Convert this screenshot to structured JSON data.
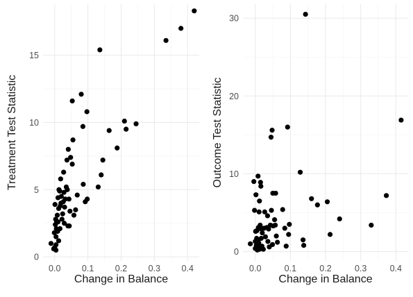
{
  "chart_data": [
    {
      "type": "scatter",
      "xlabel": "Change in Balance",
      "ylabel": "Treatment Test Statistic",
      "xlim": [
        -0.035,
        0.435
      ],
      "ylim": [
        -0.3,
        18.8
      ],
      "xticks": [
        0.0,
        0.1,
        0.2,
        0.3,
        0.4
      ],
      "xtick_labels": [
        "0.0",
        "0.1",
        "0.2",
        "0.3",
        "0.4"
      ],
      "yticks": [
        0,
        5,
        10,
        15
      ],
      "ytick_labels": [
        "0",
        "5",
        "10",
        "15"
      ],
      "grid": true,
      "points": [
        [
          -0.011,
          1.0
        ],
        [
          -0.003,
          0.6
        ],
        [
          -0.001,
          1.8
        ],
        [
          0.0,
          0.7
        ],
        [
          0.001,
          3.9
        ],
        [
          0.002,
          2.4
        ],
        [
          0.003,
          2.8
        ],
        [
          0.004,
          0.5
        ],
        [
          0.004,
          1.5
        ],
        [
          0.004,
          0.9
        ],
        [
          0.005,
          2.1
        ],
        [
          0.006,
          2.6
        ],
        [
          0.008,
          3.1
        ],
        [
          0.009,
          1.9
        ],
        [
          0.01,
          4.4
        ],
        [
          0.01,
          2.6
        ],
        [
          0.012,
          3.6
        ],
        [
          0.012,
          1.2
        ],
        [
          0.013,
          5.0
        ],
        [
          0.015,
          4.9
        ],
        [
          0.016,
          2.1
        ],
        [
          0.017,
          3.8
        ],
        [
          0.018,
          5.8
        ],
        [
          0.019,
          4.0
        ],
        [
          0.02,
          4.5
        ],
        [
          0.022,
          2.8
        ],
        [
          0.024,
          3.2
        ],
        [
          0.026,
          4.1
        ],
        [
          0.027,
          6.3
        ],
        [
          0.028,
          4.8
        ],
        [
          0.029,
          2.5
        ],
        [
          0.03,
          3.7
        ],
        [
          0.032,
          4.3
        ],
        [
          0.035,
          5.2
        ],
        [
          0.037,
          7.2
        ],
        [
          0.038,
          5.0
        ],
        [
          0.04,
          2.3
        ],
        [
          0.041,
          8.0
        ],
        [
          0.043,
          4.3
        ],
        [
          0.044,
          2.3
        ],
        [
          0.046,
          3.4
        ],
        [
          0.048,
          7.4
        ],
        [
          0.053,
          6.9
        ],
        [
          0.053,
          11.6
        ],
        [
          0.055,
          8.7
        ],
        [
          0.058,
          3.1
        ],
        [
          0.063,
          3.5
        ],
        [
          0.068,
          4.6
        ],
        [
          0.08,
          12.1
        ],
        [
          0.085,
          9.7
        ],
        [
          0.086,
          5.4
        ],
        [
          0.092,
          4.1
        ],
        [
          0.097,
          10.8
        ],
        [
          0.098,
          4.3
        ],
        [
          0.131,
          5.2
        ],
        [
          0.136,
          15.4
        ],
        [
          0.14,
          6.1
        ],
        [
          0.145,
          7.2
        ],
        [
          0.164,
          9.4
        ],
        [
          0.188,
          8.1
        ],
        [
          0.21,
          10.1
        ],
        [
          0.215,
          9.5
        ],
        [
          0.245,
          9.9
        ],
        [
          0.335,
          16.1
        ],
        [
          0.38,
          17.0
        ],
        [
          0.42,
          18.3
        ]
      ]
    },
    {
      "type": "scatter",
      "xlabel": "Change in Balance",
      "ylabel": "Outcome Test Statistic",
      "xlim": [
        -0.035,
        0.435
      ],
      "ylim": [
        -1.2,
        31.8
      ],
      "xticks": [
        0.0,
        0.1,
        0.2,
        0.3,
        0.4
      ],
      "xtick_labels": [
        "0.0",
        "0.1",
        "0.2",
        "0.3",
        "0.4"
      ],
      "yticks": [
        0,
        10,
        20,
        30
      ],
      "ytick_labels": [
        "0",
        "10",
        "20",
        "30"
      ],
      "grid": true,
      "points": [
        [
          -0.014,
          1.0
        ],
        [
          -0.004,
          9.0
        ],
        [
          -0.002,
          5.3
        ],
        [
          0.0,
          0.4
        ],
        [
          0.0,
          1.3
        ],
        [
          0.001,
          2.6
        ],
        [
          0.002,
          7.3
        ],
        [
          0.003,
          0.8
        ],
        [
          0.004,
          1.7
        ],
        [
          0.005,
          2.7
        ],
        [
          0.006,
          0.2
        ],
        [
          0.007,
          0.6
        ],
        [
          0.008,
          1.4
        ],
        [
          0.008,
          9.7
        ],
        [
          0.009,
          3.1
        ],
        [
          0.01,
          1.1
        ],
        [
          0.011,
          5.1
        ],
        [
          0.012,
          6.5
        ],
        [
          0.012,
          0.3
        ],
        [
          0.014,
          3.4
        ],
        [
          0.015,
          8.9
        ],
        [
          0.016,
          8.4
        ],
        [
          0.017,
          1.7
        ],
        [
          0.018,
          2.9
        ],
        [
          0.019,
          0.7
        ],
        [
          0.02,
          2.4
        ],
        [
          0.023,
          0.3
        ],
        [
          0.025,
          3.0
        ],
        [
          0.027,
          5.1
        ],
        [
          0.029,
          1.9
        ],
        [
          0.033,
          3.1
        ],
        [
          0.035,
          4.6
        ],
        [
          0.036,
          1.3
        ],
        [
          0.038,
          2.9
        ],
        [
          0.04,
          0.6
        ],
        [
          0.043,
          3.4
        ],
        [
          0.045,
          14.7
        ],
        [
          0.046,
          5.3
        ],
        [
          0.048,
          15.6
        ],
        [
          0.049,
          0.9
        ],
        [
          0.05,
          7.5
        ],
        [
          0.051,
          3.3
        ],
        [
          0.055,
          4.1
        ],
        [
          0.057,
          3.4
        ],
        [
          0.058,
          7.5
        ],
        [
          0.06,
          2.0
        ],
        [
          0.063,
          1.2
        ],
        [
          0.078,
          5.4
        ],
        [
          0.084,
          3.0
        ],
        [
          0.088,
          0.7
        ],
        [
          0.092,
          16.0
        ],
        [
          0.095,
          2.2
        ],
        [
          0.097,
          3.5
        ],
        [
          0.128,
          10.2
        ],
        [
          0.136,
          1.5
        ],
        [
          0.138,
          0.8
        ],
        [
          0.143,
          30.5
        ],
        [
          0.16,
          6.8
        ],
        [
          0.177,
          6.0
        ],
        [
          0.205,
          6.4
        ],
        [
          0.213,
          2.2
        ],
        [
          0.24,
          4.2
        ],
        [
          0.33,
          3.4
        ],
        [
          0.373,
          7.2
        ],
        [
          0.415,
          16.9
        ]
      ]
    }
  ]
}
